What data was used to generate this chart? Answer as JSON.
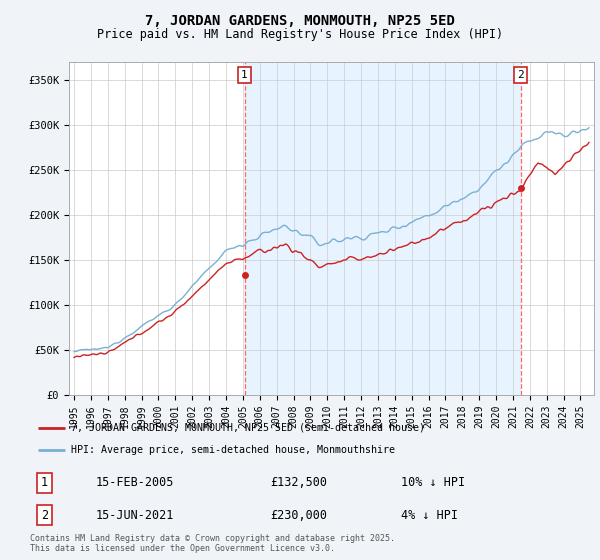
{
  "title": "7, JORDAN GARDENS, MONMOUTH, NP25 5ED",
  "subtitle": "Price paid vs. HM Land Registry's House Price Index (HPI)",
  "ylabel_ticks": [
    "£0",
    "£50K",
    "£100K",
    "£150K",
    "£200K",
    "£250K",
    "£300K",
    "£350K"
  ],
  "ytick_values": [
    0,
    50000,
    100000,
    150000,
    200000,
    250000,
    300000,
    350000
  ],
  "ylim": [
    0,
    370000
  ],
  "xlim_start": 1994.7,
  "xlim_end": 2025.8,
  "red_color": "#cc2222",
  "blue_color": "#7ab0d4",
  "blue_fill_color": "#ddeeff",
  "dashed_color": "#ff6666",
  "purchase1_x": 2005.1,
  "purchase1_y": 132500,
  "purchase1_label": "1",
  "purchase2_x": 2021.45,
  "purchase2_y": 230000,
  "purchase2_label": "2",
  "legend_line1": "7, JORDAN GARDENS, MONMOUTH, NP25 5ED (semi-detached house)",
  "legend_line2": "HPI: Average price, semi-detached house, Monmouthshire",
  "table_row1": [
    "1",
    "15-FEB-2005",
    "£132,500",
    "10% ↓ HPI"
  ],
  "table_row2": [
    "2",
    "15-JUN-2021",
    "£230,000",
    "4% ↓ HPI"
  ],
  "footer": "Contains HM Land Registry data © Crown copyright and database right 2025.\nThis data is licensed under the Open Government Licence v3.0.",
  "background_color": "#f0f4f8",
  "plot_bg_color": "#ffffff"
}
